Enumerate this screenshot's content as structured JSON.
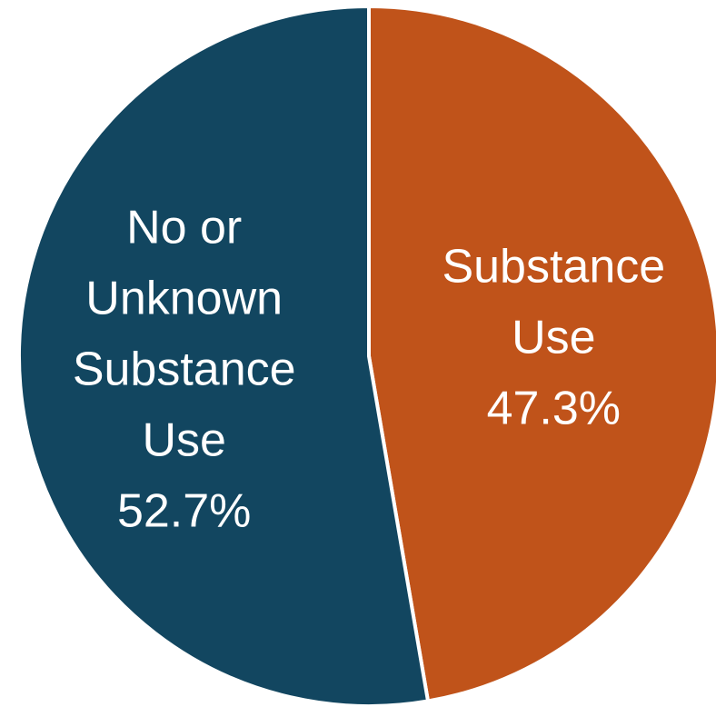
{
  "chart_data": {
    "type": "pie",
    "title": "",
    "slices": [
      {
        "name": "Substance Use",
        "label_lines": [
          "Substance",
          "Use"
        ],
        "value": 47.3,
        "value_label": "47.3%",
        "color": "#C0531A"
      },
      {
        "name": "No or Unknown Substance Use",
        "label_lines": [
          "No or",
          "Unknown",
          "Substance",
          "Use"
        ],
        "value": 52.7,
        "value_label": "52.7%",
        "color": "#124660"
      }
    ],
    "start_angle": "12 o'clock",
    "direction": "clockwise",
    "separator_color": "#ffffff",
    "legend": "none"
  }
}
